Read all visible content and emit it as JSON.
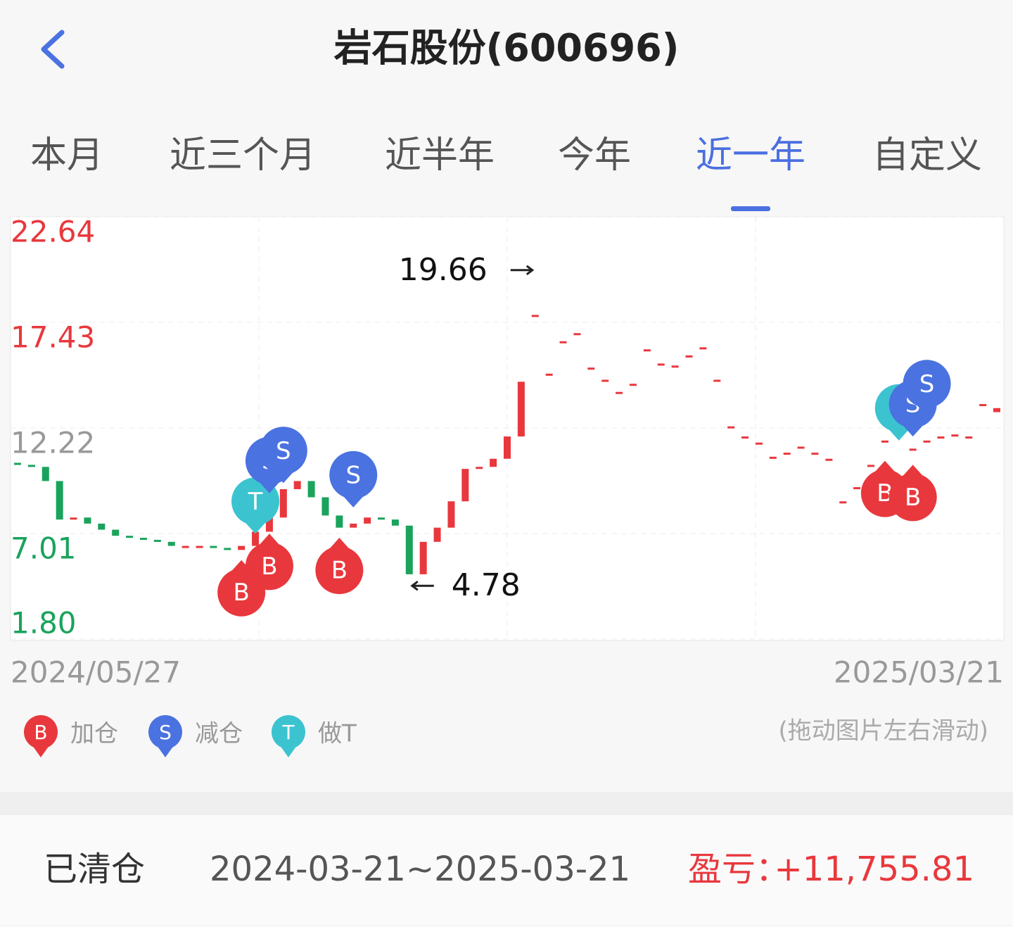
{
  "header": {
    "title": "岩石股份(600696)"
  },
  "tabs": {
    "items": [
      "本月",
      "近三个月",
      "近半年",
      "今年",
      "近一年",
      "自定义"
    ],
    "active": 4
  },
  "chart_data": {
    "type": "candlestick",
    "categories": [
      "2024/05/27",
      null,
      null,
      null,
      null,
      null,
      null,
      null,
      null,
      null,
      null,
      null,
      null,
      null,
      null,
      null,
      null,
      null,
      null,
      null,
      null,
      null,
      null,
      null,
      null,
      null,
      null,
      null,
      null,
      null,
      null,
      null,
      null,
      null,
      null,
      null,
      null,
      null,
      null,
      null,
      null,
      null,
      null,
      null,
      null,
      null,
      null,
      null,
      null,
      null,
      null,
      null,
      null,
      null,
      null,
      null,
      null,
      null,
      null,
      null,
      null,
      null,
      null,
      null,
      null,
      null,
      null,
      null,
      null,
      null,
      "2025/03/21"
    ],
    "open": [
      10.5,
      10.4,
      10.3,
      9.6,
      7.7,
      7.8,
      7.5,
      7.2,
      6.9,
      6.8,
      6.7,
      6.6,
      6.4,
      6.4,
      6.4,
      6.3,
      6.2,
      6.4,
      7.1,
      7.8,
      9.2,
      9.6,
      8.8,
      7.9,
      7.3,
      7.5,
      7.8,
      7.7,
      7.4,
      5.0,
      6.6,
      7.3,
      8.6,
      10.2,
      10.3,
      10.7,
      11.8,
      17.8,
      14.9,
      16.5,
      16.9,
      15.2,
      14.6,
      14.0,
      14.4,
      16.1,
      15.4,
      15.3,
      15.8,
      16.2,
      14.6,
      12.3,
      11.8,
      11.5,
      10.8,
      11.0,
      11.3,
      11.0,
      10.7,
      8.6,
      9.3,
      10.4,
      11.6,
      11.9,
      11.2,
      11.6,
      11.8,
      11.9,
      11.8,
      13.4,
      13.0
    ],
    "close": [
      10.4,
      10.3,
      9.6,
      7.7,
      7.8,
      7.5,
      7.2,
      6.9,
      6.8,
      6.7,
      6.6,
      6.4,
      6.4,
      6.4,
      6.3,
      6.2,
      6.4,
      7.1,
      7.8,
      9.2,
      9.6,
      8.8,
      7.9,
      7.3,
      7.5,
      7.8,
      7.7,
      7.4,
      5.0,
      6.6,
      7.3,
      8.6,
      10.2,
      10.3,
      10.7,
      11.8,
      14.5,
      17.8,
      14.9,
      16.5,
      16.9,
      15.2,
      14.6,
      14.0,
      14.4,
      16.1,
      15.4,
      15.3,
      15.8,
      16.2,
      14.6,
      12.3,
      11.8,
      11.5,
      10.8,
      11.0,
      11.3,
      11.0,
      10.7,
      8.6,
      9.3,
      10.4,
      11.6,
      11.9,
      11.2,
      11.6,
      11.8,
      11.9,
      11.8,
      13.4,
      13.2
    ],
    "up_color": "#e8383d",
    "down_color": "#1aa35c",
    "ylim": [
      1.8,
      22.64
    ],
    "yticks": [
      {
        "value": 1.8,
        "label": "1.80"
      },
      7.01,
      12.22,
      17.43,
      22.64
    ],
    "ytick_colors": [
      "#1aa35c",
      "#1aa35c",
      "#999999",
      "#e8383d",
      "#e8383d"
    ],
    "grid": true,
    "high": 19.66,
    "low": 4.78,
    "trades": [
      {
        "label": "B",
        "x": 16,
        "value": 5.7
      },
      {
        "label": "B",
        "x": 18,
        "value": 7.0
      },
      {
        "label": "T",
        "x": 17,
        "value": 7.0
      },
      {
        "label": "S",
        "x": 18,
        "value": 9.0
      },
      {
        "label": "S",
        "x": 19,
        "value": 9.5
      },
      {
        "label": "B",
        "x": 23,
        "value": 6.8
      },
      {
        "label": "S",
        "x": 24,
        "value": 8.3
      },
      {
        "label": "B",
        "x": 62,
        "value": 10.6
      },
      {
        "label": "B",
        "x": 64,
        "value": 10.4
      },
      {
        "label": "T",
        "x": 63,
        "value": 11.6
      },
      {
        "label": "S",
        "x": 64,
        "value": 11.8
      },
      {
        "label": "S",
        "x": 65,
        "value": 12.8
      }
    ],
    "legend": [
      {
        "icon": "B",
        "label": "加仓",
        "color": "#e8383d"
      },
      {
        "icon": "S",
        "label": "减仓",
        "color": "#4a72e0"
      },
      {
        "icon": "T",
        "label": "做T",
        "color": "#3cc3d0"
      }
    ]
  },
  "hint": "(拖动图片左右滑动)",
  "footer": {
    "status": "已清仓",
    "period": "2024-03-21~2025-03-21",
    "profit_label": "盈亏：",
    "profit": {
      "value": 11755.81,
      "label": "+11,755.81"
    }
  }
}
